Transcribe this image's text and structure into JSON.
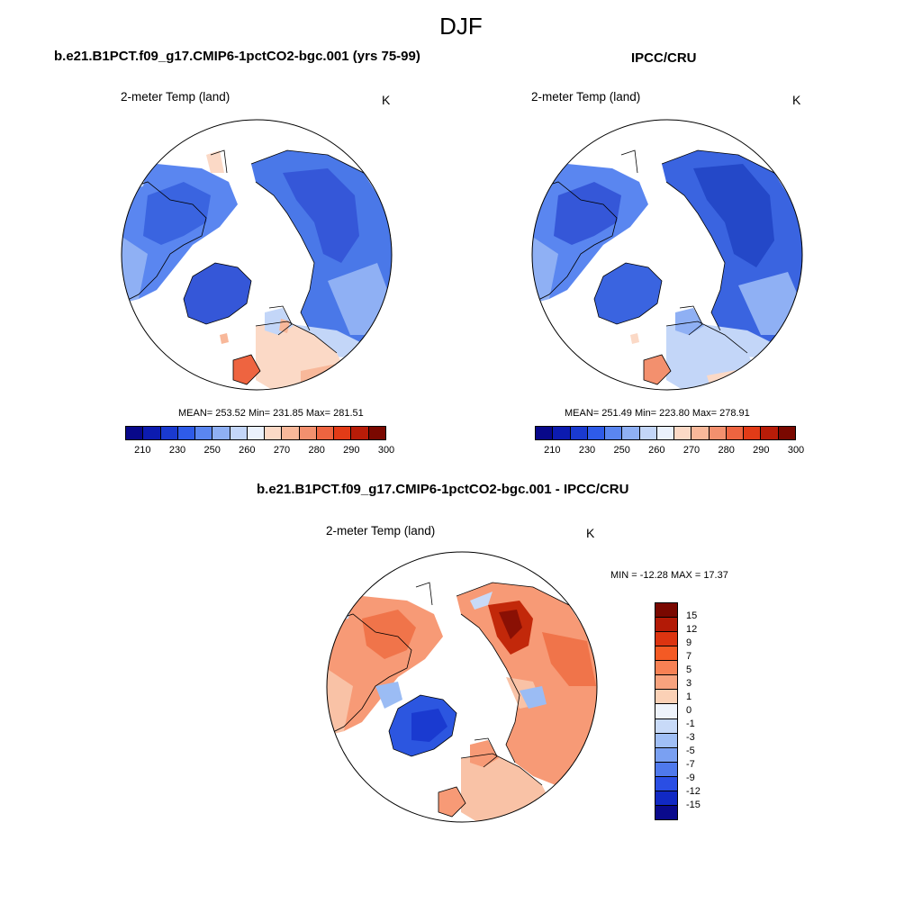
{
  "page": {
    "title": "DJF"
  },
  "panel_model": {
    "title": "b.e21.B1PCT.f09_g17.CMIP6-1pctCO2-bgc.001 (yrs 75-99)",
    "variable": "2-meter Temp (land)",
    "units": "K",
    "stats": "MEAN= 253.52  Min= 231.85  Max= 281.51",
    "mean": 253.52,
    "min": 231.85,
    "max": 281.51
  },
  "panel_obs": {
    "title": "IPCC/CRU",
    "variable": "2-meter Temp (land)",
    "units": "K",
    "stats": "MEAN= 251.49  Min= 223.80  Max= 278.91",
    "mean": 251.49,
    "min": 223.8,
    "max": 278.91
  },
  "panel_diff": {
    "title": "b.e21.B1PCT.f09_g17.CMIP6-1pctCO2-bgc.001 - IPCC/CRU",
    "variable": "2-meter Temp (land)",
    "units": "K",
    "stats": "MIN = -12.28 MAX =  17.37",
    "min": -12.28,
    "max": 17.37
  },
  "colorbar_abs": {
    "colors": [
      "#08088a",
      "#0c1bb0",
      "#1a3ad0",
      "#2e5be8",
      "#5a86f0",
      "#8fb0f4",
      "#c3d6f8",
      "#eaf1fc",
      "#fbd9c6",
      "#f8b89a",
      "#f3906e",
      "#ee6440",
      "#e23b17",
      "#b81c08",
      "#7a0800"
    ],
    "labels": [
      "210",
      "230",
      "250",
      "260",
      "270",
      "280",
      "290",
      "300"
    ]
  },
  "colorbar_diff": {
    "colors": [
      "#7a0800",
      "#b31a06",
      "#dc3410",
      "#f45a24",
      "#f78154",
      "#f8a37e",
      "#fbd1b6",
      "#eef3fb",
      "#c8daf8",
      "#a0bff6",
      "#7aa0f2",
      "#4f79ec",
      "#2a4ee4",
      "#1129c4",
      "#0a0a8c"
    ],
    "labels": [
      "15",
      "12",
      "9",
      "7",
      "5",
      "3",
      "1",
      "0",
      "-1",
      "-3",
      "-5",
      "-7",
      "-9",
      "-12",
      "-15"
    ]
  },
  "map_colors": {
    "abs_cold_deep": "#3557d8",
    "abs_cold": "#4a78e8",
    "abs_mid": "#8fb0f4",
    "abs_light": "#c3d6f8",
    "abs_warm": "#fbd9c6",
    "abs_warmer": "#f3906e",
    "diff_warm": "#f79a76",
    "diff_warm_light": "#f9c2a6",
    "diff_hot": "#c2280a",
    "diff_cold": "#2c56e0",
    "diff_cold_light": "#9bbcf4"
  }
}
